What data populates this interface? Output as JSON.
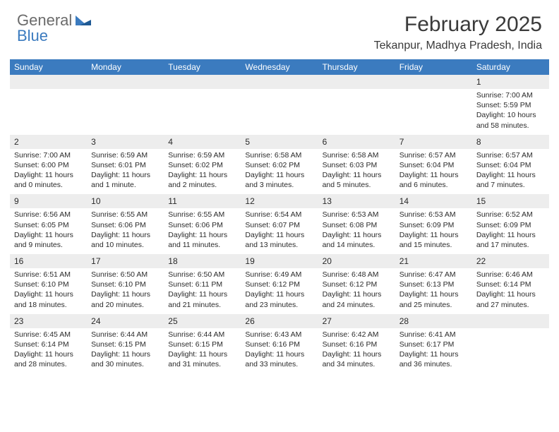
{
  "logo": {
    "general": "General",
    "blue": "Blue"
  },
  "title": "February 2025",
  "location": "Tekanpur, Madhya Pradesh, India",
  "colors": {
    "header_bg": "#3b7bbf",
    "header_text": "#ffffff",
    "daynum_bg": "#ededed",
    "text": "#2a2a2a",
    "logo_gray": "#6b6b6b",
    "logo_blue": "#3b7bbf",
    "page_bg": "#ffffff"
  },
  "day_headers": [
    "Sunday",
    "Monday",
    "Tuesday",
    "Wednesday",
    "Thursday",
    "Friday",
    "Saturday"
  ],
  "weeks": [
    [
      {
        "num": "",
        "sunrise": "",
        "sunset": "",
        "daylight": ""
      },
      {
        "num": "",
        "sunrise": "",
        "sunset": "",
        "daylight": ""
      },
      {
        "num": "",
        "sunrise": "",
        "sunset": "",
        "daylight": ""
      },
      {
        "num": "",
        "sunrise": "",
        "sunset": "",
        "daylight": ""
      },
      {
        "num": "",
        "sunrise": "",
        "sunset": "",
        "daylight": ""
      },
      {
        "num": "",
        "sunrise": "",
        "sunset": "",
        "daylight": ""
      },
      {
        "num": "1",
        "sunrise": "Sunrise: 7:00 AM",
        "sunset": "Sunset: 5:59 PM",
        "daylight": "Daylight: 10 hours and 58 minutes."
      }
    ],
    [
      {
        "num": "2",
        "sunrise": "Sunrise: 7:00 AM",
        "sunset": "Sunset: 6:00 PM",
        "daylight": "Daylight: 11 hours and 0 minutes."
      },
      {
        "num": "3",
        "sunrise": "Sunrise: 6:59 AM",
        "sunset": "Sunset: 6:01 PM",
        "daylight": "Daylight: 11 hours and 1 minute."
      },
      {
        "num": "4",
        "sunrise": "Sunrise: 6:59 AM",
        "sunset": "Sunset: 6:02 PM",
        "daylight": "Daylight: 11 hours and 2 minutes."
      },
      {
        "num": "5",
        "sunrise": "Sunrise: 6:58 AM",
        "sunset": "Sunset: 6:02 PM",
        "daylight": "Daylight: 11 hours and 3 minutes."
      },
      {
        "num": "6",
        "sunrise": "Sunrise: 6:58 AM",
        "sunset": "Sunset: 6:03 PM",
        "daylight": "Daylight: 11 hours and 5 minutes."
      },
      {
        "num": "7",
        "sunrise": "Sunrise: 6:57 AM",
        "sunset": "Sunset: 6:04 PM",
        "daylight": "Daylight: 11 hours and 6 minutes."
      },
      {
        "num": "8",
        "sunrise": "Sunrise: 6:57 AM",
        "sunset": "Sunset: 6:04 PM",
        "daylight": "Daylight: 11 hours and 7 minutes."
      }
    ],
    [
      {
        "num": "9",
        "sunrise": "Sunrise: 6:56 AM",
        "sunset": "Sunset: 6:05 PM",
        "daylight": "Daylight: 11 hours and 9 minutes."
      },
      {
        "num": "10",
        "sunrise": "Sunrise: 6:55 AM",
        "sunset": "Sunset: 6:06 PM",
        "daylight": "Daylight: 11 hours and 10 minutes."
      },
      {
        "num": "11",
        "sunrise": "Sunrise: 6:55 AM",
        "sunset": "Sunset: 6:06 PM",
        "daylight": "Daylight: 11 hours and 11 minutes."
      },
      {
        "num": "12",
        "sunrise": "Sunrise: 6:54 AM",
        "sunset": "Sunset: 6:07 PM",
        "daylight": "Daylight: 11 hours and 13 minutes."
      },
      {
        "num": "13",
        "sunrise": "Sunrise: 6:53 AM",
        "sunset": "Sunset: 6:08 PM",
        "daylight": "Daylight: 11 hours and 14 minutes."
      },
      {
        "num": "14",
        "sunrise": "Sunrise: 6:53 AM",
        "sunset": "Sunset: 6:09 PM",
        "daylight": "Daylight: 11 hours and 15 minutes."
      },
      {
        "num": "15",
        "sunrise": "Sunrise: 6:52 AM",
        "sunset": "Sunset: 6:09 PM",
        "daylight": "Daylight: 11 hours and 17 minutes."
      }
    ],
    [
      {
        "num": "16",
        "sunrise": "Sunrise: 6:51 AM",
        "sunset": "Sunset: 6:10 PM",
        "daylight": "Daylight: 11 hours and 18 minutes."
      },
      {
        "num": "17",
        "sunrise": "Sunrise: 6:50 AM",
        "sunset": "Sunset: 6:10 PM",
        "daylight": "Daylight: 11 hours and 20 minutes."
      },
      {
        "num": "18",
        "sunrise": "Sunrise: 6:50 AM",
        "sunset": "Sunset: 6:11 PM",
        "daylight": "Daylight: 11 hours and 21 minutes."
      },
      {
        "num": "19",
        "sunrise": "Sunrise: 6:49 AM",
        "sunset": "Sunset: 6:12 PM",
        "daylight": "Daylight: 11 hours and 23 minutes."
      },
      {
        "num": "20",
        "sunrise": "Sunrise: 6:48 AM",
        "sunset": "Sunset: 6:12 PM",
        "daylight": "Daylight: 11 hours and 24 minutes."
      },
      {
        "num": "21",
        "sunrise": "Sunrise: 6:47 AM",
        "sunset": "Sunset: 6:13 PM",
        "daylight": "Daylight: 11 hours and 25 minutes."
      },
      {
        "num": "22",
        "sunrise": "Sunrise: 6:46 AM",
        "sunset": "Sunset: 6:14 PM",
        "daylight": "Daylight: 11 hours and 27 minutes."
      }
    ],
    [
      {
        "num": "23",
        "sunrise": "Sunrise: 6:45 AM",
        "sunset": "Sunset: 6:14 PM",
        "daylight": "Daylight: 11 hours and 28 minutes."
      },
      {
        "num": "24",
        "sunrise": "Sunrise: 6:44 AM",
        "sunset": "Sunset: 6:15 PM",
        "daylight": "Daylight: 11 hours and 30 minutes."
      },
      {
        "num": "25",
        "sunrise": "Sunrise: 6:44 AM",
        "sunset": "Sunset: 6:15 PM",
        "daylight": "Daylight: 11 hours and 31 minutes."
      },
      {
        "num": "26",
        "sunrise": "Sunrise: 6:43 AM",
        "sunset": "Sunset: 6:16 PM",
        "daylight": "Daylight: 11 hours and 33 minutes."
      },
      {
        "num": "27",
        "sunrise": "Sunrise: 6:42 AM",
        "sunset": "Sunset: 6:16 PM",
        "daylight": "Daylight: 11 hours and 34 minutes."
      },
      {
        "num": "28",
        "sunrise": "Sunrise: 6:41 AM",
        "sunset": "Sunset: 6:17 PM",
        "daylight": "Daylight: 11 hours and 36 minutes."
      },
      {
        "num": "",
        "sunrise": "",
        "sunset": "",
        "daylight": ""
      }
    ]
  ]
}
